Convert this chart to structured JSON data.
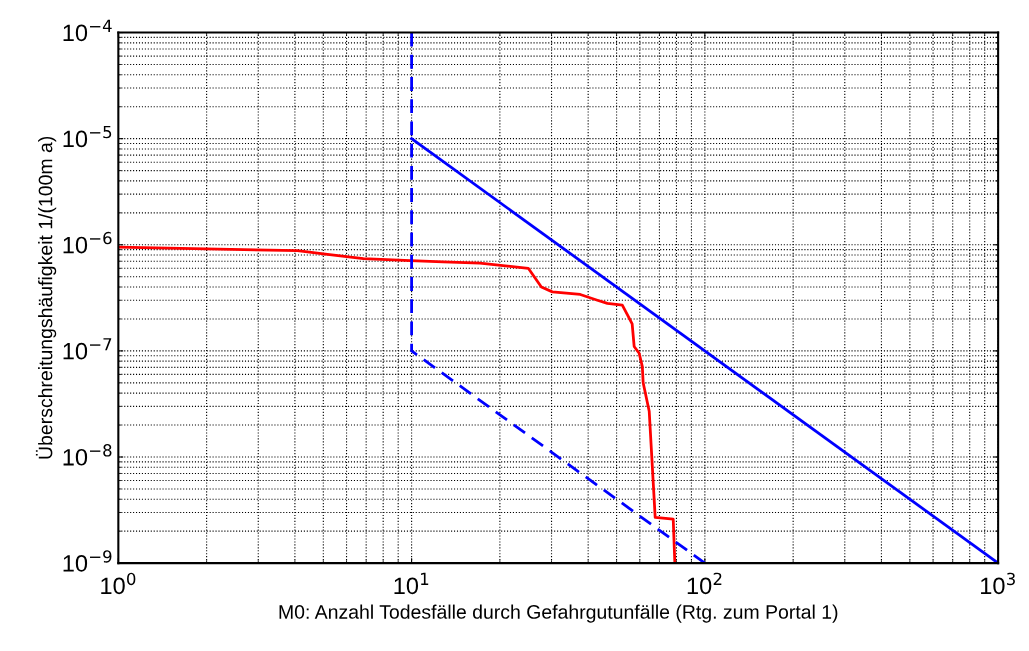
{
  "chart_data": {
    "type": "line",
    "xlabel": "M0: Anzahl Todesfälle durch Gefahrgutunfälle (Rtg. zum Portal 1)",
    "ylabel": "Überschreitungshäufigkeit 1/(100m a)",
    "log": "xy",
    "grid": true,
    "xlim": [
      1,
      1000
    ],
    "ylim": [
      1e-09,
      0.0001
    ],
    "xticks": [
      {
        "value": 1,
        "label": "10$^{0}$"
      },
      {
        "value": 10,
        "label": "10$^{1}$"
      },
      {
        "value": 100,
        "label": "10$^{2}$"
      },
      {
        "value": 1000,
        "label": "10$^{3}$"
      }
    ],
    "yticks": [
      {
        "value": 1e-09,
        "label": "10$^{−9}$"
      },
      {
        "value": 1e-08,
        "label": "10$^{−8}$"
      },
      {
        "value": 1e-07,
        "label": "10$^{−7}$"
      },
      {
        "value": 1e-06,
        "label": "10$^{−6}$"
      },
      {
        "value": 1e-05,
        "label": "10$^{−5}$"
      },
      {
        "value": 0.0001,
        "label": "10$^{−4}$"
      }
    ],
    "series": [
      {
        "color": "#ff0000",
        "line_style": "solid",
        "x": [
          1,
          4.08,
          5.0,
          6.85,
          9.9,
          12.8,
          17.1,
          25.0,
          27.7,
          30.2,
          37.6,
          43.0,
          46.5,
          52.3,
          54.4,
          56.5,
          57.4,
          59.7,
          61.2,
          61.6,
          64.6,
          67.7,
          78.0,
          79.0
        ],
        "values": [
          9.5e-07,
          8.8e-07,
          8.2e-07,
          7.4e-07,
          7.1e-07,
          6.9e-07,
          6.7e-07,
          6e-07,
          4e-07,
          3.6e-07,
          3.4e-07,
          3e-07,
          2.8e-07,
          2.7e-07,
          2.2e-07,
          1.8e-07,
          1.1e-07,
          9.5e-08,
          7.1e-08,
          5e-08,
          2.7e-08,
          2.7e-09,
          2.6e-09,
          1e-09
        ]
      },
      {
        "color": "#0000ff",
        "line_style": "solid",
        "x": [
          10,
          1000
        ],
        "values": [
          1e-05,
          1e-09
        ]
      },
      {
        "color": "#0000ff",
        "line_style": "dashed",
        "x": [
          10,
          10,
          100
        ],
        "values": [
          0.0001,
          1e-07,
          1e-09
        ]
      }
    ]
  }
}
